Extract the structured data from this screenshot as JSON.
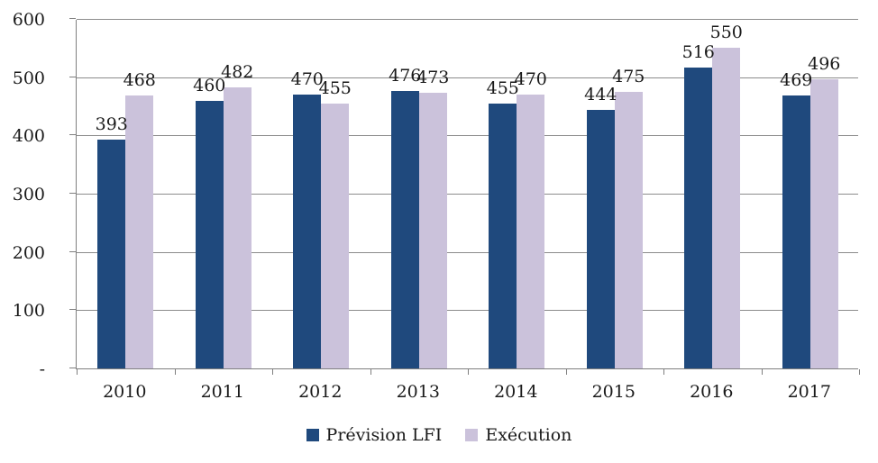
{
  "figure": {
    "background": "#FFFFFF",
    "axis_color": "#7F7F7F",
    "grid_color": "#8C8C8C",
    "text_color": "#1A1A1A"
  },
  "chart_data": {
    "type": "bar",
    "title": "",
    "categories": [
      "2010",
      "2011",
      "2012",
      "2013",
      "2014",
      "2015",
      "2016",
      "2017"
    ],
    "series": [
      {
        "name": "Prévision LFI",
        "color": "#1F497D",
        "values": [
          393,
          460,
          470,
          476,
          455,
          444,
          516,
          469
        ]
      },
      {
        "name": "Exécution",
        "color": "#CBC2DB",
        "values": [
          468,
          482,
          455,
          473,
          470,
          475,
          550,
          496
        ]
      }
    ],
    "value_labels_shown": true,
    "y_axis": {
      "min": 0,
      "max": 600,
      "tick_step": 100,
      "tick_labels": [
        "-",
        "100",
        "200",
        "300",
        "400",
        "500",
        "600"
      ]
    },
    "grid": true,
    "legend_position": "bottom"
  }
}
